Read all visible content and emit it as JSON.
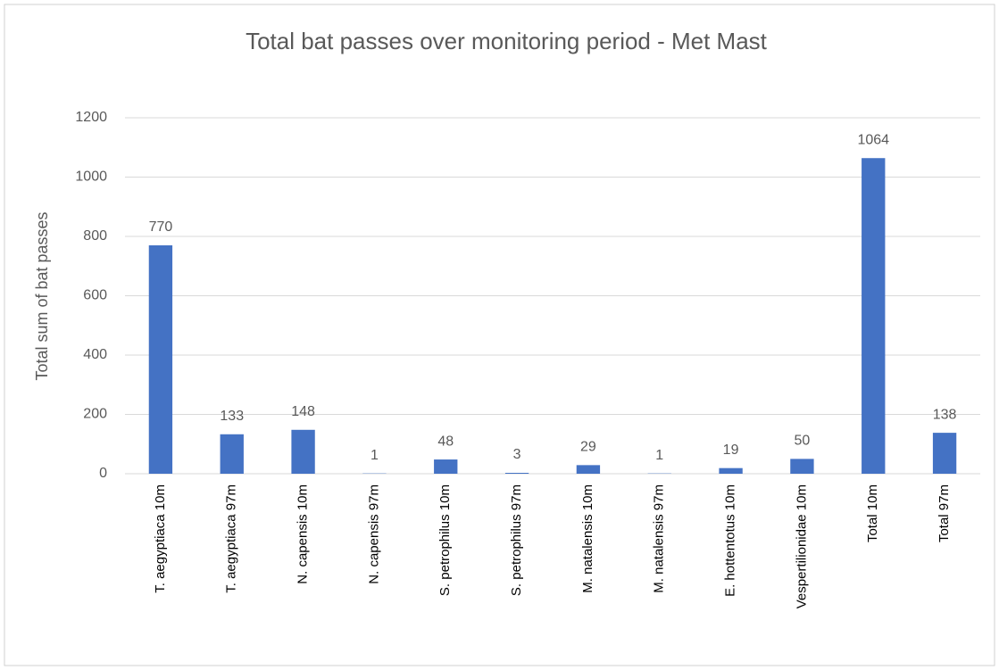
{
  "chart_data": {
    "type": "bar",
    "title": "Total bat passes over monitoring period - Met Mast",
    "y_label": "Total sum of bat passes",
    "categories": [
      "T. aegyptiaca 10m",
      "T. aegyptiaca 97m",
      "N. capensis 10m",
      "N. capensis 97m",
      "S. petrophilus 10m",
      "S. petrophilus 97m",
      "M. natalensis 10m",
      "M. natalensis 97m",
      "E. hottentotus 10m",
      "Vespertilionidae 10m",
      "Total 10m",
      "Total 97m"
    ],
    "values": [
      770,
      133,
      148,
      1,
      48,
      3,
      29,
      1,
      19,
      50,
      1064,
      138
    ],
    "color": "#4472c4",
    "ylim": [
      0,
      1200
    ],
    "yticks": [
      0,
      200,
      400,
      600,
      800,
      1000,
      1200
    ],
    "grid": true
  }
}
